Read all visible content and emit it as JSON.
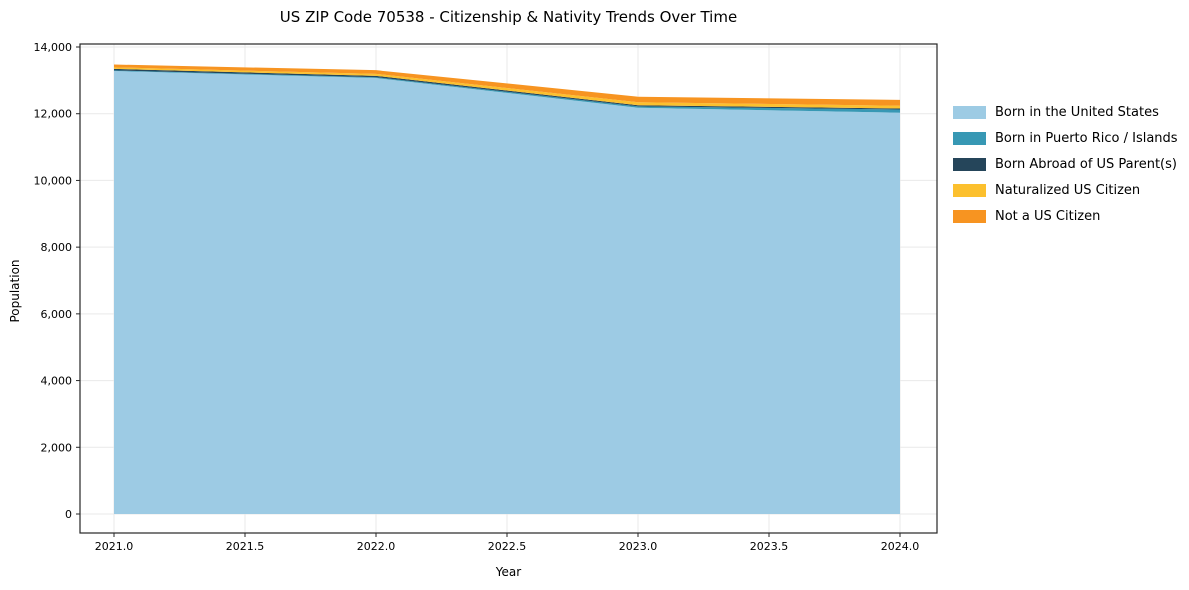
{
  "title": "US ZIP Code 70538 - Citizenship & Nativity Trends Over Time",
  "chart_data": {
    "type": "area",
    "stacked": true,
    "title": "US ZIP Code 70538 - Citizenship & Nativity Trends Over Time",
    "xlabel": "Year",
    "ylabel": "Population",
    "x": [
      2021,
      2022,
      2023,
      2024
    ],
    "series": [
      {
        "name": "Born in the United States",
        "color": "#9dcbe4",
        "values": [
          13280,
          13070,
          12180,
          12030
        ]
      },
      {
        "name": "Born in Puerto Rico / Islands",
        "color": "#3798b4",
        "values": [
          20,
          25,
          40,
          95
        ]
      },
      {
        "name": "Born Abroad of US Parent(s)",
        "color": "#25455a",
        "values": [
          45,
          40,
          35,
          30
        ]
      },
      {
        "name": "Naturalized US Citizen",
        "color": "#fcc02e",
        "values": [
          45,
          60,
          90,
          85
        ]
      },
      {
        "name": "Not a US Citizen",
        "color": "#f79421",
        "values": [
          85,
          110,
          165,
          175
        ]
      }
    ],
    "xticks": [
      2021.0,
      2021.5,
      2022.0,
      2022.5,
      2023.0,
      2023.5,
      2024.0
    ],
    "yticks": [
      0,
      2000,
      4000,
      6000,
      8000,
      10000,
      12000,
      14000
    ],
    "xlim": [
      2020.85,
      2024.15
    ],
    "ylim": [
      0,
      14000
    ],
    "grid": true,
    "legend_position": "right"
  }
}
